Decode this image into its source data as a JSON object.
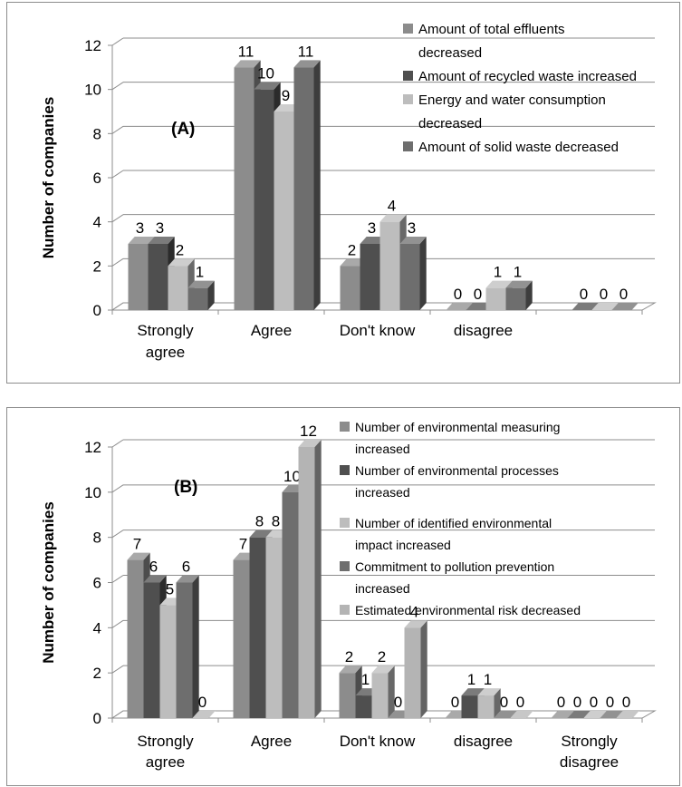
{
  "chart_data": [
    {
      "type": "bar",
      "panel_label": "(A)",
      "ylabel": "Number of companies",
      "ylim": [
        0,
        12
      ],
      "yticks": [
        0,
        2,
        4,
        6,
        8,
        10,
        12
      ],
      "categories": [
        "Strongly agree",
        "Agree",
        "Don't know",
        "disagree",
        ""
      ],
      "grid": true,
      "legend_position": "top-right",
      "series": [
        {
          "name": "Amount of total effluents decreased",
          "values": [
            3,
            11,
            2,
            0,
            null
          ],
          "color": "#8c8c8c"
        },
        {
          "name": "Amount of recycled waste increased",
          "values": [
            3,
            10,
            3,
            0,
            0
          ],
          "color": "#4f4f4f"
        },
        {
          "name": "Energy and water consumption decreased",
          "values": [
            2,
            9,
            4,
            1,
            0
          ],
          "color": "#bdbdbd"
        },
        {
          "name": "Amount of solid waste decreased",
          "values": [
            1,
            11,
            3,
            1,
            0
          ],
          "color": "#6e6e6e"
        }
      ]
    },
    {
      "type": "bar",
      "panel_label": "(B)",
      "ylabel": "Number of companies",
      "ylim": [
        0,
        12
      ],
      "yticks": [
        0,
        2,
        4,
        6,
        8,
        10,
        12
      ],
      "categories": [
        "Strongly agree",
        "Agree",
        "Don't know",
        "disagree",
        "Strongly disagree"
      ],
      "grid": true,
      "legend_position": "top-right",
      "series": [
        {
          "name": "Number of environmental measuring increased",
          "values": [
            7,
            7,
            2,
            0,
            0
          ],
          "color": "#8c8c8c"
        },
        {
          "name": "Number of environmental processes increased",
          "values": [
            6,
            8,
            1,
            1,
            0
          ],
          "color": "#4f4f4f"
        },
        {
          "name": "Number of identified environmental impact increased",
          "values": [
            5,
            8,
            2,
            1,
            0
          ],
          "color": "#bdbdbd"
        },
        {
          "name": "Commitment to pollution prevention increased",
          "values": [
            6,
            10,
            0,
            0,
            0
          ],
          "color": "#6e6e6e"
        },
        {
          "name": "Estimated environmental risk decreased",
          "values": [
            0,
            12,
            4,
            0,
            0
          ],
          "color": "#b4b4b4"
        }
      ]
    }
  ]
}
